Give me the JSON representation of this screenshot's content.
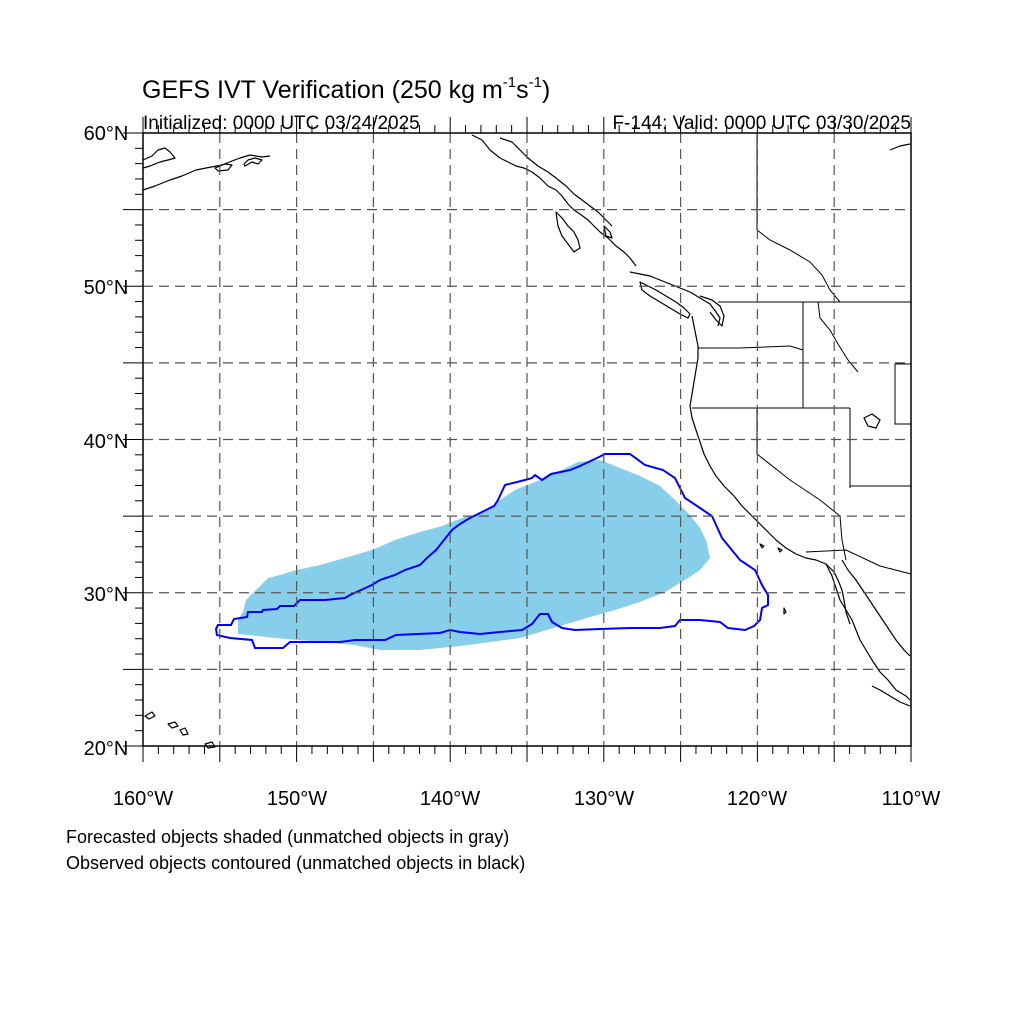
{
  "title": {
    "text": "GEFS IVT Verification (250 kg m",
    "sup1": "-1",
    "mid": "s",
    "sup2": "-1",
    "end": ")"
  },
  "initialized": "Initialized: 0000 UTC 03/24/2025",
  "valid": "F-144: Valid: 0000 UTC 03/30/2025",
  "lat_labels": [
    "60°N",
    "50°N",
    "40°N",
    "30°N",
    "20°N"
  ],
  "lon_labels": [
    "160°W",
    "150°W",
    "140°W",
    "130°W",
    "120°W",
    "110°W"
  ],
  "map_extent": {
    "lon_min": -160,
    "lon_max": -110,
    "lat_min": 20,
    "lat_max": 60
  },
  "gridline_style": "dashed gray every 5 degrees",
  "colors": {
    "forecast_fill": "#87ceeb",
    "observed_contour": "#0000ff",
    "coastline": "#000000",
    "grid": "#555555"
  },
  "caption": {
    "line1": "Forecasted objects shaded (unmatched objects in gray)",
    "line2": "Observed objects contoured (unmatched objects in black)"
  }
}
